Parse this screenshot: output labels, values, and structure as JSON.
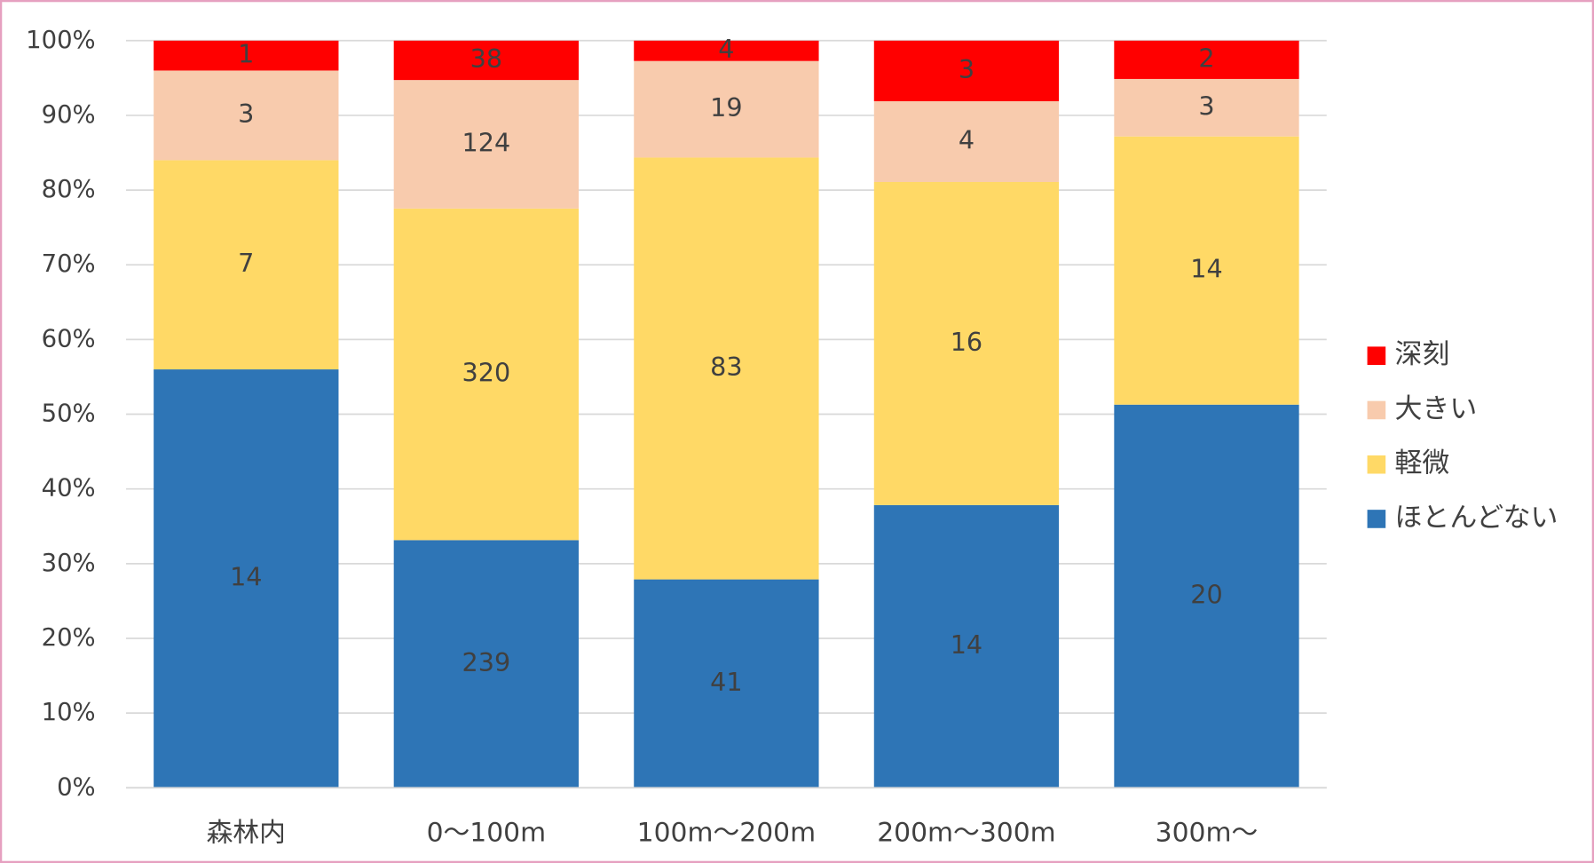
{
  "chart_data": {
    "type": "bar",
    "stacking": "percent",
    "categories": [
      "森林内",
      "0〜100m",
      "100m〜200m",
      "200m〜300m",
      "300m〜"
    ],
    "series": [
      {
        "name": "ほとんどない",
        "color": "#2e75b6",
        "values": [
          14,
          239,
          41,
          14,
          20
        ]
      },
      {
        "name": "軽微",
        "color": "#ffd966",
        "values": [
          7,
          320,
          83,
          16,
          14
        ]
      },
      {
        "name": "大きい",
        "color": "#f8cbad",
        "values": [
          3,
          124,
          19,
          4,
          3
        ]
      },
      {
        "name": "深刻",
        "color": "#ff0000",
        "values": [
          1,
          38,
          4,
          3,
          2
        ]
      }
    ],
    "ylim": [
      0,
      100
    ],
    "yticks": [
      {
        "value": 0,
        "label": "0%"
      },
      {
        "value": 10,
        "label": "10%"
      },
      {
        "value": 20,
        "label": "20%"
      },
      {
        "value": 30,
        "label": "30%"
      },
      {
        "value": 40,
        "label": "40%"
      },
      {
        "value": 50,
        "label": "50%"
      },
      {
        "value": 60,
        "label": "60%"
      },
      {
        "value": 70,
        "label": "70%"
      },
      {
        "value": 80,
        "label": "80%"
      },
      {
        "value": 90,
        "label": "90%"
      },
      {
        "value": 100,
        "label": "100%"
      }
    ],
    "grid": true,
    "legend": "right"
  }
}
